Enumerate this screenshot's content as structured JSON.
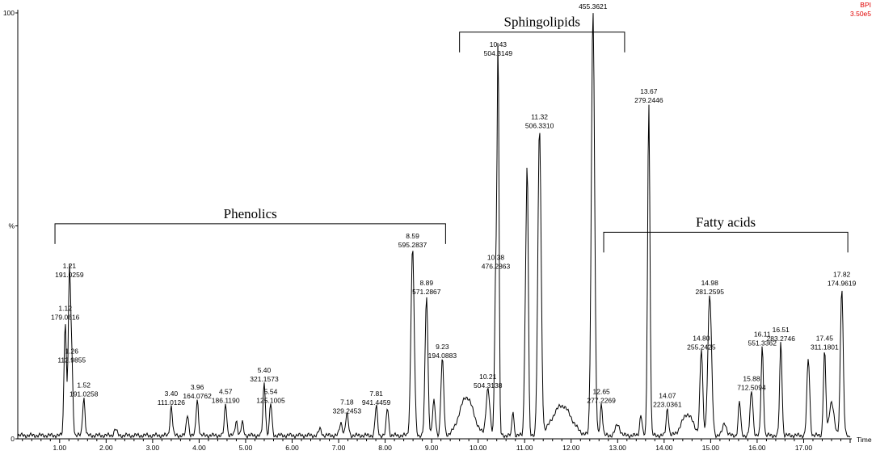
{
  "chart_data": {
    "type": "line",
    "detector": "BPI",
    "intensity": "3.50e5",
    "xlabel": "Time",
    "y_ticks": [
      {
        "value": 0,
        "label": "0"
      },
      {
        "value": 50,
        "label": "%"
      },
      {
        "value": 100,
        "label": "100"
      }
    ],
    "x_ticks": [
      {
        "value": 1,
        "label": "1.00"
      },
      {
        "value": 2,
        "label": "2.00"
      },
      {
        "value": 3,
        "label": "3.00"
      },
      {
        "value": 4,
        "label": "4.00"
      },
      {
        "value": 5,
        "label": "5.00"
      },
      {
        "value": 6,
        "label": "6.00"
      },
      {
        "value": 7,
        "label": "7.00"
      },
      {
        "value": 8,
        "label": "8.00"
      },
      {
        "value": 9,
        "label": "9.00"
      },
      {
        "value": 10,
        "label": "10.00"
      },
      {
        "value": 11,
        "label": "11.00"
      },
      {
        "value": 12,
        "label": "12.00"
      },
      {
        "value": 13,
        "label": "13.00"
      },
      {
        "value": 14,
        "label": "14.00"
      },
      {
        "value": 15,
        "label": "15.00"
      },
      {
        "value": 16,
        "label": "16.00"
      },
      {
        "value": 17,
        "label": "17.00"
      }
    ],
    "xlim": [
      0.1,
      18.0
    ],
    "ylim": [
      0,
      100
    ],
    "baseline": 0.8,
    "peaks": [
      {
        "t": 1.12,
        "h": 27,
        "w": 0.025,
        "label": [
          "1.12",
          "179.0616"
        ]
      },
      {
        "t": 1.21,
        "h": 37,
        "w": 0.025,
        "label": [
          "1.21",
          "191.0259"
        ]
      },
      {
        "t": 1.26,
        "h": 17,
        "w": 0.025,
        "label": [
          "1.26",
          "112.9855"
        ]
      },
      {
        "t": 1.52,
        "h": 9,
        "w": 0.025,
        "label": [
          "1.52",
          "191.0258"
        ]
      },
      {
        "t": 2.2,
        "h": 1.5,
        "w": 0.03
      },
      {
        "t": 3.4,
        "h": 7,
        "w": 0.025,
        "label": [
          "3.40",
          "111.0126"
        ]
      },
      {
        "t": 3.75,
        "h": 5,
        "w": 0.025
      },
      {
        "t": 3.96,
        "h": 8.5,
        "w": 0.025,
        "label": [
          "3.96",
          "164.0762"
        ]
      },
      {
        "t": 4.57,
        "h": 7.5,
        "w": 0.025,
        "label": [
          "4.57",
          "186.1190"
        ]
      },
      {
        "t": 4.8,
        "h": 3.5,
        "w": 0.025
      },
      {
        "t": 4.93,
        "h": 3,
        "w": 0.025
      },
      {
        "t": 5.4,
        "h": 12.5,
        "w": 0.025,
        "label": [
          "5.40",
          "321.1573"
        ]
      },
      {
        "t": 5.54,
        "h": 7.5,
        "w": 0.025,
        "label": [
          "5.54",
          "125.1005"
        ]
      },
      {
        "t": 6.6,
        "h": 1.5,
        "w": 0.03
      },
      {
        "t": 7.05,
        "h": 3,
        "w": 0.03
      },
      {
        "t": 7.18,
        "h": 5,
        "w": 0.03,
        "label": [
          "7.18",
          "329.2453"
        ]
      },
      {
        "t": 7.81,
        "h": 7,
        "w": 0.025,
        "label": [
          "7.81",
          "941.4459"
        ]
      },
      {
        "t": 8.05,
        "h": 6.5,
        "w": 0.025
      },
      {
        "t": 8.59,
        "h": 44,
        "w": 0.035,
        "label": [
          "8.59",
          "595.2837"
        ]
      },
      {
        "t": 8.89,
        "h": 33,
        "w": 0.03,
        "label": [
          "8.89",
          "571.2867"
        ]
      },
      {
        "t": 9.05,
        "h": 8,
        "w": 0.03
      },
      {
        "t": 9.23,
        "h": 18,
        "w": 0.03,
        "label": [
          "9.23",
          "194.0883"
        ]
      },
      {
        "t": 9.75,
        "h": 9,
        "w": 0.15
      },
      {
        "t": 10.21,
        "h": 11,
        "w": 0.04,
        "label": [
          "10.21",
          "504.3138"
        ]
      },
      {
        "t": 10.38,
        "h": 39,
        "w": 0.025,
        "label": [
          "10.38",
          "476.2863"
        ]
      },
      {
        "t": 10.43,
        "h": 89,
        "w": 0.02,
        "label": [
          "10.43",
          "504.3149"
        ]
      },
      {
        "t": 10.75,
        "h": 6,
        "w": 0.02
      },
      {
        "t": 11.02,
        "h": 28,
        "w": 0.025
      },
      {
        "t": 11.06,
        "h": 55,
        "w": 0.022
      },
      {
        "t": 11.32,
        "h": 72,
        "w": 0.035,
        "label": [
          "11.32",
          "506.3310"
        ]
      },
      {
        "t": 11.8,
        "h": 7,
        "w": 0.2
      },
      {
        "t": 12.47,
        "h": 100,
        "w": 0.035,
        "label": [
          "12.47",
          "455.3621"
        ]
      },
      {
        "t": 12.65,
        "h": 7.5,
        "w": 0.025,
        "label": [
          "12.65",
          "277.2269"
        ]
      },
      {
        "t": 13.0,
        "h": 2.5,
        "w": 0.05
      },
      {
        "t": 13.5,
        "h": 5,
        "w": 0.025
      },
      {
        "t": 13.67,
        "h": 78,
        "w": 0.025,
        "label": [
          "13.67",
          "279.2446"
        ]
      },
      {
        "t": 14.07,
        "h": 6.5,
        "w": 0.025,
        "label": [
          "14.07",
          "223.0361"
        ]
      },
      {
        "t": 14.5,
        "h": 5,
        "w": 0.12
      },
      {
        "t": 14.8,
        "h": 20,
        "w": 0.03,
        "label": [
          "14.80",
          "255.2425"
        ]
      },
      {
        "t": 14.98,
        "h": 33,
        "w": 0.04,
        "label": [
          "14.98",
          "281.2595"
        ]
      },
      {
        "t": 15.3,
        "h": 3,
        "w": 0.04
      },
      {
        "t": 15.62,
        "h": 8,
        "w": 0.025
      },
      {
        "t": 15.88,
        "h": 10.5,
        "w": 0.03,
        "label": [
          "15.88",
          "712.5094"
        ]
      },
      {
        "t": 16.11,
        "h": 21,
        "w": 0.025,
        "label": [
          "16.11",
          "551.3362"
        ]
      },
      {
        "t": 16.51,
        "h": 22,
        "w": 0.025,
        "label": [
          "16.51",
          "283.2746"
        ]
      },
      {
        "t": 17.1,
        "h": 18,
        "w": 0.03
      },
      {
        "t": 17.45,
        "h": 20,
        "w": 0.025,
        "label": [
          "17.45",
          "311.1801"
        ]
      },
      {
        "t": 17.6,
        "h": 8,
        "w": 0.05
      },
      {
        "t": 17.82,
        "h": 35,
        "w": 0.03,
        "label": [
          "17.82",
          "174.9619"
        ]
      }
    ],
    "groups": [
      {
        "name": "Phenolics",
        "t_start": 0.9,
        "t_end": 9.3,
        "level": 50.5
      },
      {
        "name": "Sphingolipids",
        "t_start": 9.6,
        "t_end": 13.15,
        "level": 95.5
      },
      {
        "name": "Fatty acids",
        "t_start": 12.7,
        "t_end": 17.95,
        "level": 48.5
      }
    ]
  }
}
